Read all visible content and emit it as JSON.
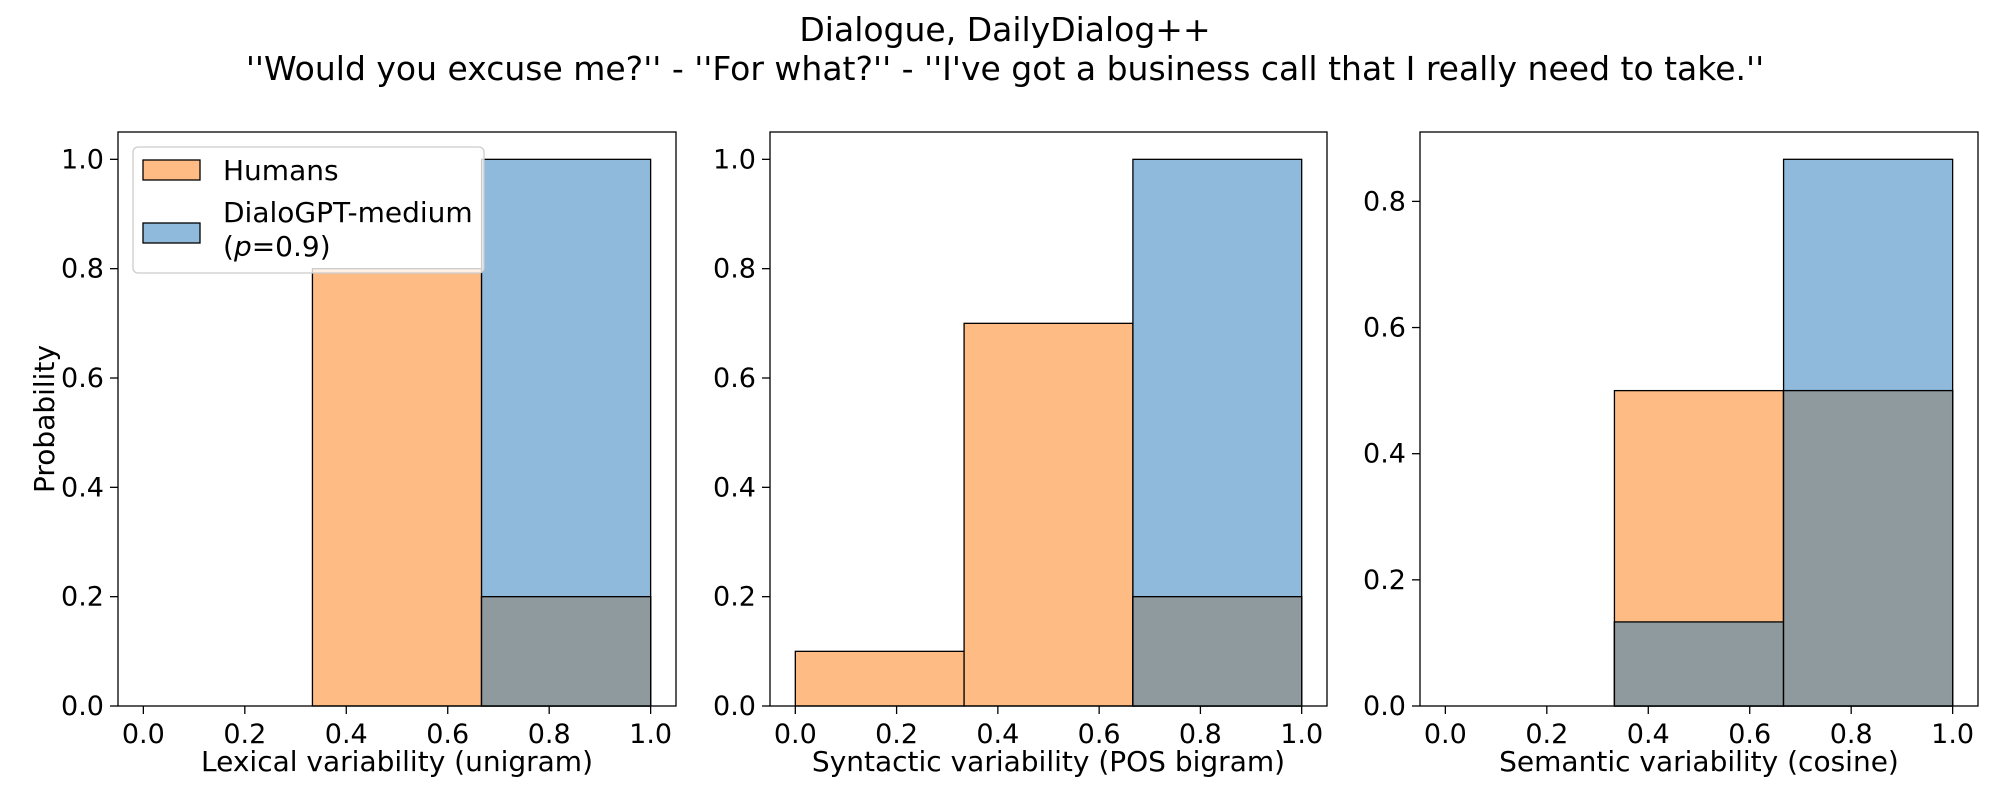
{
  "figure": {
    "title": "Dialogue, DailyDialog++",
    "subtitle": "''Would you excuse me?'' - ''For what?'' - ''I've got a business call that I really need to take.''"
  },
  "colors": {
    "humans": "#ffbb84",
    "model": "#8fbadb",
    "overlap": "#8f9a9e",
    "edge": "#000000"
  },
  "chart_data": [
    {
      "type": "bar",
      "subtype": "histogram",
      "xlabel": "Lexical variability (unigram)",
      "ylabel": "Probability",
      "xlim": [
        -0.05,
        1.05
      ],
      "ylim": [
        0,
        1.05
      ],
      "xticks": [
        "0.0",
        "0.2",
        "0.4",
        "0.6",
        "0.8",
        "1.0"
      ],
      "yticks": [
        "0.0",
        "0.2",
        "0.4",
        "0.6",
        "0.8",
        "1.0"
      ],
      "bin_edges": [
        0,
        0.3333,
        0.6667,
        1.0
      ],
      "series": [
        {
          "name": "Humans",
          "values": [
            0,
            0.8,
            0.2
          ]
        },
        {
          "name": "DialoGPT-medium (p=0.9)",
          "values": [
            0,
            0,
            1.0
          ]
        }
      ],
      "legend": {
        "placement": "top-left",
        "items": [
          {
            "label": "Humans",
            "color_key": "humans"
          },
          {
            "label_line1": "DialoGPT-medium",
            "label_prefix": "(",
            "label_italic": "p",
            "label_suffix": "=0.9)",
            "color_key": "model"
          }
        ]
      }
    },
    {
      "type": "bar",
      "subtype": "histogram",
      "xlabel": "Syntactic variability (POS bigram)",
      "ylabel": "",
      "xlim": [
        -0.05,
        1.05
      ],
      "ylim": [
        0,
        1.05
      ],
      "xticks": [
        "0.0",
        "0.2",
        "0.4",
        "0.6",
        "0.8",
        "1.0"
      ],
      "yticks": [
        "0.0",
        "0.2",
        "0.4",
        "0.6",
        "0.8",
        "1.0"
      ],
      "bin_edges": [
        0,
        0.3333,
        0.6667,
        1.0
      ],
      "series": [
        {
          "name": "Humans",
          "values": [
            0.1,
            0.7,
            0.2
          ]
        },
        {
          "name": "DialoGPT-medium (p=0.9)",
          "values": [
            0,
            0,
            1.0
          ]
        }
      ]
    },
    {
      "type": "bar",
      "subtype": "histogram",
      "xlabel": "Semantic variability (cosine)",
      "ylabel": "",
      "xlim": [
        -0.05,
        1.05
      ],
      "ylim": [
        0,
        0.91
      ],
      "xticks": [
        "0.0",
        "0.2",
        "0.4",
        "0.6",
        "0.8",
        "1.0"
      ],
      "yticks": [
        "0.0",
        "0.2",
        "0.4",
        "0.6",
        "0.8"
      ],
      "bin_edges": [
        0,
        0.3333,
        0.6667,
        1.0
      ],
      "series": [
        {
          "name": "Humans",
          "values": [
            0,
            0.5,
            0.5
          ]
        },
        {
          "name": "DialoGPT-medium (p=0.9)",
          "values": [
            0,
            0.1333,
            0.8667
          ]
        }
      ]
    }
  ]
}
